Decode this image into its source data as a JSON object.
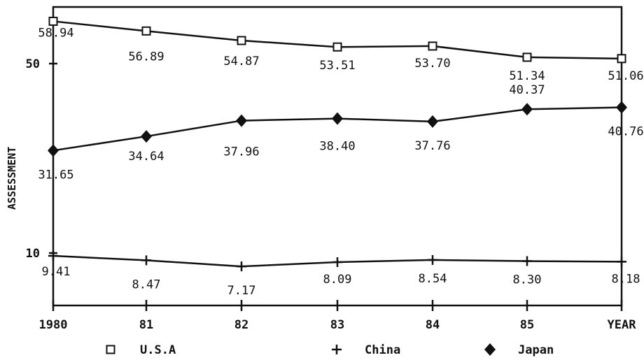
{
  "chart_data": {
    "type": "line",
    "ylabel": "ASSESSMENT",
    "x_categories": [
      "1980",
      "81",
      "82",
      "83",
      "84",
      "85",
      "YEAR"
    ],
    "y_ticks": [
      {
        "value": 50,
        "label": "50"
      },
      {
        "value": 10,
        "label": "10"
      }
    ],
    "ylim": [
      0,
      62
    ],
    "series": [
      {
        "name": "U.S.A",
        "marker": "square",
        "values": [
          58.94,
          56.89,
          54.87,
          53.51,
          53.7,
          51.34,
          51.06
        ],
        "labels": [
          "58.94",
          "56.89",
          "54.87",
          "53.51",
          "53.70",
          "51.34",
          "51.06"
        ]
      },
      {
        "name": "China",
        "marker": "plus",
        "values": [
          9.41,
          8.47,
          7.17,
          8.09,
          8.54,
          8.3,
          8.18
        ],
        "labels": [
          "9.41",
          "8.47",
          "7.17",
          "8.09",
          "8.54",
          "8.30",
          "8.18"
        ]
      },
      {
        "name": "Japan",
        "marker": "diamond",
        "values": [
          31.65,
          34.64,
          37.96,
          38.4,
          37.76,
          40.37,
          40.76
        ],
        "labels": [
          "31.65",
          "34.64",
          "37.96",
          "38.40",
          "37.76",
          "40.37",
          "40.76"
        ]
      }
    ],
    "legend": {
      "placement": "bottom",
      "entries": [
        {
          "label": "U.S.A",
          "marker": "square"
        },
        {
          "label": "China",
          "marker": "plus"
        },
        {
          "label": "Japan",
          "marker": "diamond"
        }
      ]
    }
  }
}
